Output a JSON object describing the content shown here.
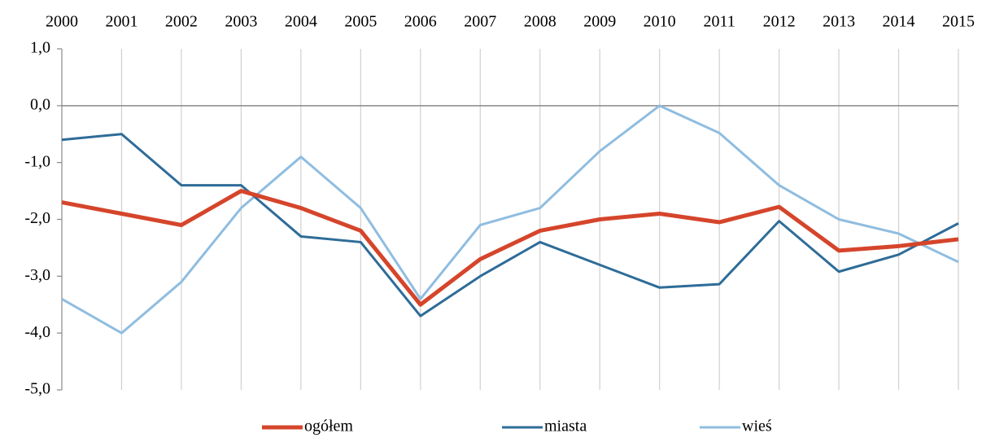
{
  "chart_data": {
    "type": "line",
    "categories": [
      "2000",
      "2001",
      "2002",
      "2003",
      "2004",
      "2005",
      "2006",
      "2007",
      "2008",
      "2009",
      "2010",
      "2011",
      "2012",
      "2013",
      "2014",
      "2015"
    ],
    "series": [
      {
        "name": "ogółem",
        "color": "#d5452b",
        "values": [
          -1.7,
          -1.9,
          -2.1,
          -1.5,
          -1.8,
          -2.2,
          -3.5,
          -2.7,
          -2.2,
          -2.0,
          -1.9,
          -2.05,
          -1.78,
          -2.55,
          -2.47,
          -2.35
        ]
      },
      {
        "name": "miasta",
        "color": "#2e6c98",
        "values": [
          -0.6,
          -0.5,
          -1.4,
          -1.4,
          -2.3,
          -2.4,
          -3.7,
          -3.0,
          -2.4,
          -2.8,
          -3.2,
          -3.14,
          -2.03,
          -2.92,
          -2.62,
          -2.07
        ]
      },
      {
        "name": "wieś",
        "color": "#8fbde0",
        "values": [
          -3.4,
          -4.0,
          -3.1,
          -1.8,
          -0.9,
          -1.8,
          -3.4,
          -2.1,
          -1.8,
          -0.8,
          0.0,
          -0.48,
          -1.4,
          -2.0,
          -2.25,
          -2.75
        ]
      }
    ],
    "ylim": [
      -5,
      1
    ],
    "yticks": [
      {
        "value": 1,
        "label": "1,0"
      },
      {
        "value": 0,
        "label": "0,0"
      },
      {
        "value": -1,
        "label": "-1,0"
      },
      {
        "value": -2,
        "label": "-2,0"
      },
      {
        "value": -3,
        "label": "-3,0"
      },
      {
        "value": -4,
        "label": "-4,0"
      },
      {
        "value": -5,
        "label": "-5,0"
      }
    ],
    "grid": true,
    "legend": "bottom"
  }
}
